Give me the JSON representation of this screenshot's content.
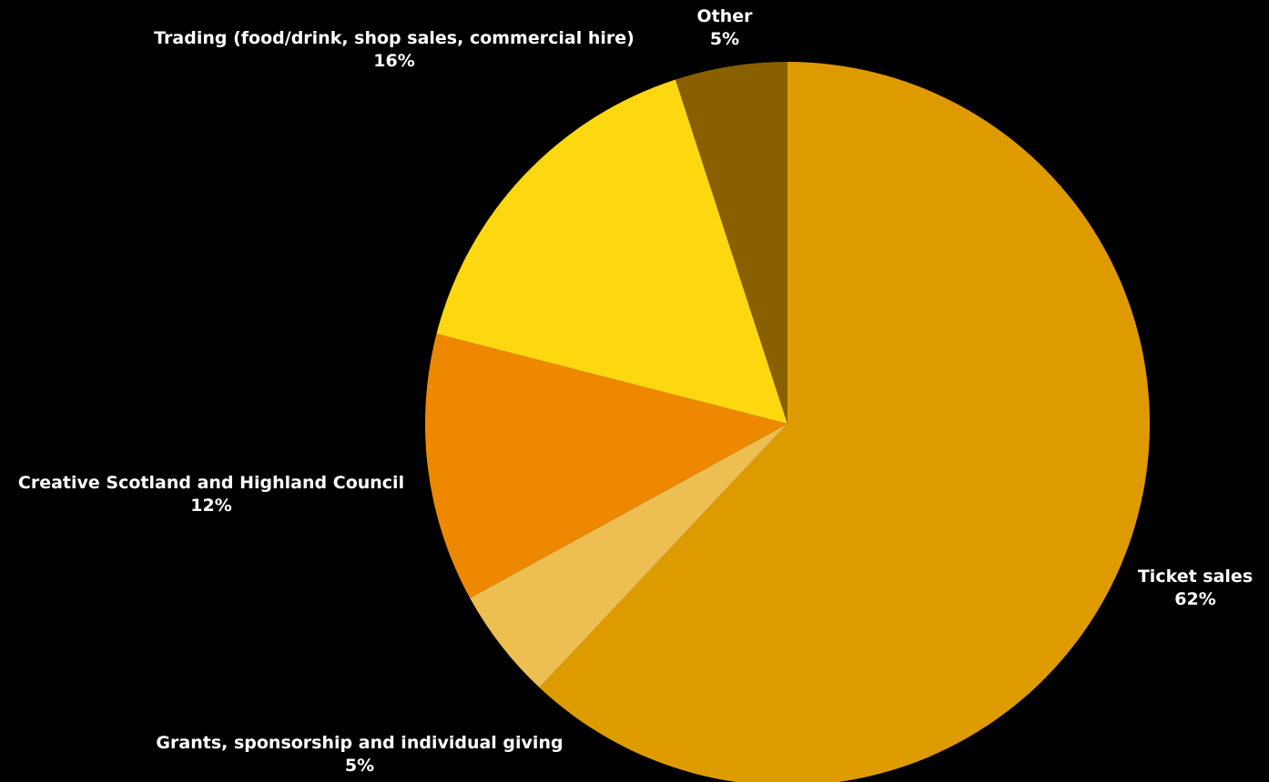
{
  "chart_data": {
    "type": "pie",
    "title": "",
    "start_angle_deg": 0,
    "direction": "clockwise",
    "slices": [
      {
        "name": "Ticket sales",
        "value": 62,
        "label": "62%",
        "color": "#DE9B00"
      },
      {
        "name": "Grants, sponsorship and individual giving",
        "value": 5,
        "label": "5%",
        "color": "#EDBE52"
      },
      {
        "name": "Creative Scotland and Highland Council",
        "value": 12,
        "label": "12%",
        "color": "#EE8800"
      },
      {
        "name": "Trading (food/drink, shop sales, commercial hire)",
        "value": 16,
        "label": "16%",
        "color": "#FDD710"
      },
      {
        "name": "Other",
        "value": 5,
        "label": "5%",
        "color": "#8A5F00"
      }
    ],
    "legend": "none"
  }
}
